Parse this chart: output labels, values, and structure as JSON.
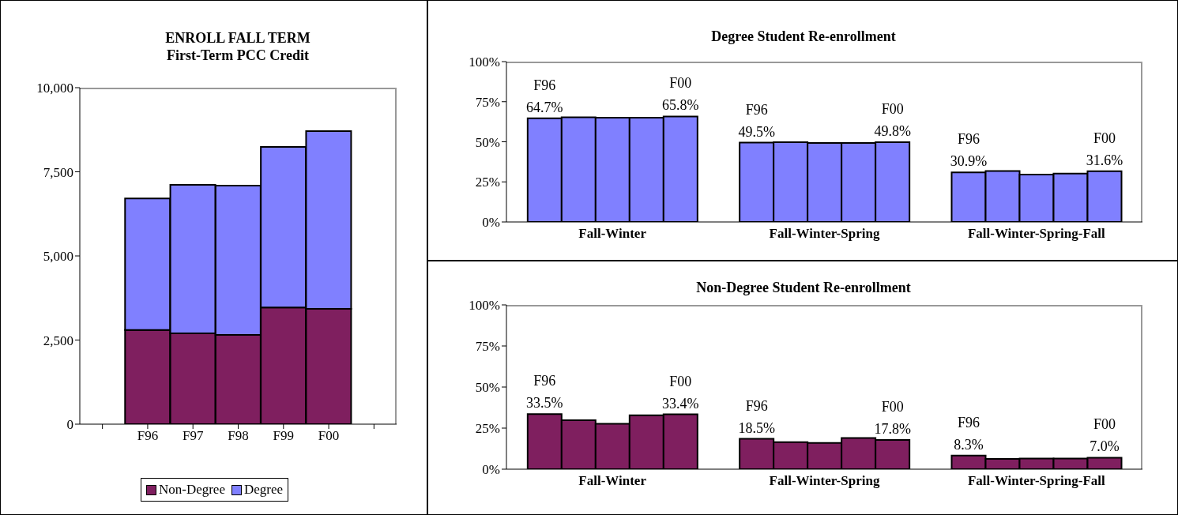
{
  "chart_data": [
    {
      "type": "bar",
      "stacked": true,
      "title": "ENROLL FALL TERM\nFirst-Term PCC Credit",
      "categories": [
        null,
        "F96",
        "F97",
        "F98",
        "F99",
        "F00",
        null
      ],
      "ylim": [
        0,
        10000
      ],
      "yticks": [
        {
          "value": 0,
          "label": "0"
        },
        {
          "value": 2500,
          "label": "2,500"
        },
        {
          "value": 5000,
          "label": "5,000"
        },
        {
          "value": 7500,
          "label": "7,500"
        },
        {
          "value": 10000,
          "label": "10,000"
        }
      ],
      "legend": "bottom",
      "series": [
        {
          "name": "Non-Degree",
          "color": "#7f1f5f",
          "values": [
            null,
            2800,
            2700,
            2650,
            3470,
            3430,
            null
          ]
        },
        {
          "name": "Degree",
          "color": "#8080ff",
          "values": [
            null,
            3910,
            4410,
            4440,
            4770,
            5280,
            null
          ]
        }
      ]
    },
    {
      "type": "bar",
      "title": "Degree Student Re-enrollment",
      "categories": [
        "Fall-Winter",
        "Fall-Winter-Spring",
        "Fall-Winter-Spring-Fall"
      ],
      "ylim": [
        0,
        100
      ],
      "yticks": [
        {
          "value": 0,
          "label": "0%"
        },
        {
          "value": 25,
          "label": "25%"
        },
        {
          "value": 50,
          "label": "50%"
        },
        {
          "value": 75,
          "label": "75%"
        },
        {
          "value": 100,
          "label": "100%"
        }
      ],
      "series": [
        {
          "name": "F96",
          "color": "#8080ff",
          "values": [
            64.7,
            49.5,
            30.9
          ],
          "value_labels": [
            "64.7%",
            "49.5%",
            "30.9%"
          ]
        },
        {
          "color": "#8080ff",
          "values": [
            65.3,
            49.8,
            31.8
          ]
        },
        {
          "color": "#8080ff",
          "values": [
            65.0,
            49.3,
            29.5
          ]
        },
        {
          "color": "#8080ff",
          "values": [
            65.0,
            49.2,
            30.2
          ]
        },
        {
          "name": "F00",
          "color": "#8080ff",
          "values": [
            65.8,
            49.8,
            31.6
          ],
          "value_labels": [
            "65.8%",
            "49.8%",
            "31.6%"
          ]
        }
      ]
    },
    {
      "type": "bar",
      "title": "Non-Degree Student Re-enrollment",
      "categories": [
        "Fall-Winter",
        "Fall-Winter-Spring",
        "Fall-Winter-Spring-Fall"
      ],
      "ylim": [
        0,
        100
      ],
      "yticks": [
        {
          "value": 0,
          "label": "0%"
        },
        {
          "value": 25,
          "label": "25%"
        },
        {
          "value": 50,
          "label": "50%"
        },
        {
          "value": 75,
          "label": "75%"
        },
        {
          "value": 100,
          "label": "100%"
        }
      ],
      "series": [
        {
          "name": "F96",
          "color": "#7f1f5f",
          "values": [
            33.5,
            18.5,
            8.3
          ],
          "value_labels": [
            "33.5%",
            "18.5%",
            "8.3%"
          ]
        },
        {
          "color": "#7f1f5f",
          "values": [
            29.8,
            16.5,
            6.2
          ]
        },
        {
          "color": "#7f1f5f",
          "values": [
            27.7,
            16.0,
            6.5
          ]
        },
        {
          "color": "#7f1f5f",
          "values": [
            32.8,
            19.0,
            6.5
          ]
        },
        {
          "name": "F00",
          "color": "#7f1f5f",
          "values": [
            33.4,
            17.8,
            7.0
          ],
          "value_labels": [
            "33.4%",
            "17.8%",
            "7.0%"
          ]
        }
      ]
    }
  ]
}
